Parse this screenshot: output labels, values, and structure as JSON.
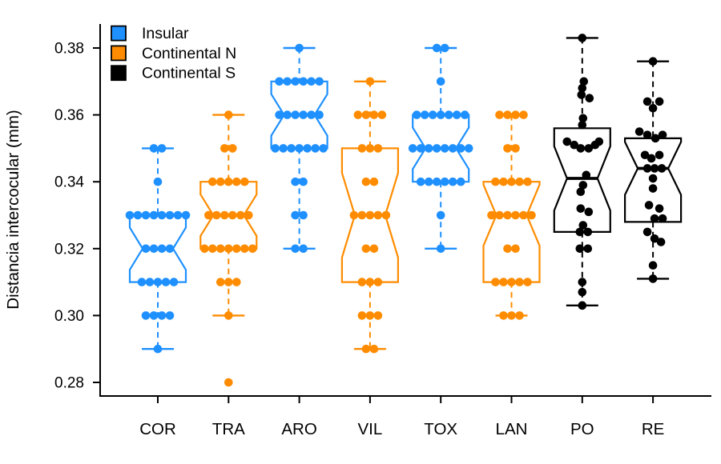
{
  "chart_data": {
    "type": "boxplot",
    "title": "",
    "ylabel": "Distancia intercocular (mm)",
    "xlabel": "",
    "ylim": [
      0.275,
      0.388
    ],
    "grid": false,
    "legend_position": "top-left-inside",
    "legend": [
      {
        "label": "Insular",
        "color": "#1E90FF"
      },
      {
        "label": "Continental N",
        "color": "#FF8C00"
      },
      {
        "label": "Continental S",
        "color": "#000000"
      }
    ],
    "yticks": [
      {
        "value": 0.38,
        "label": "0.38"
      },
      {
        "value": 0.36,
        "label": "0.36"
      },
      {
        "value": 0.34,
        "label": "0.34"
      },
      {
        "value": 0.32,
        "label": "0.32"
      },
      {
        "value": 0.3,
        "label": "0.30"
      },
      {
        "value": 0.28,
        "label": "0.28"
      }
    ],
    "groups": [
      {
        "name": "COR",
        "series": "Insular",
        "color": "#1E90FF",
        "box": {
          "whisker_low": 0.29,
          "q1": 0.31,
          "median": 0.32,
          "q3": 0.33,
          "whisker_high": 0.35
        },
        "point_counts": [
          [
            0.35,
            2
          ],
          [
            0.34,
            1
          ],
          [
            0.33,
            8
          ],
          [
            0.32,
            4
          ],
          [
            0.31,
            5
          ],
          [
            0.3,
            4
          ],
          [
            0.29,
            1
          ]
        ]
      },
      {
        "name": "TRA",
        "series": "Continental N",
        "color": "#FF8C00",
        "box": {
          "whisker_low": 0.3,
          "q1": 0.32,
          "median": 0.33,
          "q3": 0.34,
          "whisker_high": 0.36
        },
        "point_counts": [
          [
            0.36,
            1
          ],
          [
            0.35,
            2
          ],
          [
            0.34,
            5
          ],
          [
            0.33,
            6
          ],
          [
            0.32,
            7
          ],
          [
            0.31,
            3
          ],
          [
            0.3,
            1
          ],
          [
            0.28,
            1
          ]
        ]
      },
      {
        "name": "ARO",
        "series": "Insular",
        "color": "#1E90FF",
        "box": {
          "whisker_low": 0.32,
          "q1": 0.35,
          "median": 0.36,
          "q3": 0.37,
          "whisker_high": 0.38
        },
        "point_counts": [
          [
            0.38,
            1
          ],
          [
            0.37,
            6
          ],
          [
            0.36,
            6
          ],
          [
            0.35,
            7
          ],
          [
            0.34,
            2
          ],
          [
            0.33,
            2
          ],
          [
            0.32,
            2
          ]
        ]
      },
      {
        "name": "VIL",
        "series": "Continental N",
        "color": "#FF8C00",
        "box": {
          "whisker_low": 0.29,
          "q1": 0.31,
          "median": 0.33,
          "q3": 0.35,
          "whisker_high": 0.37
        },
        "point_counts": [
          [
            0.37,
            1
          ],
          [
            0.36,
            4
          ],
          [
            0.35,
            3
          ],
          [
            0.34,
            2
          ],
          [
            0.33,
            5
          ],
          [
            0.32,
            2
          ],
          [
            0.31,
            3
          ],
          [
            0.3,
            3
          ],
          [
            0.29,
            2
          ]
        ]
      },
      {
        "name": "TOX",
        "series": "Insular",
        "color": "#1E90FF",
        "box": {
          "whisker_low": 0.32,
          "q1": 0.34,
          "median": 0.35,
          "q3": 0.36,
          "whisker_high": 0.38
        },
        "point_counts": [
          [
            0.38,
            2
          ],
          [
            0.37,
            1
          ],
          [
            0.36,
            7
          ],
          [
            0.35,
            8
          ],
          [
            0.34,
            6
          ],
          [
            0.33,
            1
          ],
          [
            0.32,
            1
          ]
        ]
      },
      {
        "name": "LAN",
        "series": "Continental N",
        "color": "#FF8C00",
        "box": {
          "whisker_low": 0.3,
          "q1": 0.31,
          "median": 0.33,
          "q3": 0.34,
          "whisker_high": 0.36
        },
        "point_counts": [
          [
            0.36,
            4
          ],
          [
            0.35,
            2
          ],
          [
            0.34,
            5
          ],
          [
            0.33,
            6
          ],
          [
            0.32,
            2
          ],
          [
            0.31,
            5
          ],
          [
            0.3,
            3
          ]
        ]
      },
      {
        "name": "PO",
        "series": "Continental S",
        "color": "#000000",
        "box": {
          "whisker_low": 0.303,
          "q1": 0.325,
          "median": 0.341,
          "q3": 0.356,
          "whisker_high": 0.383
        },
        "points_jitter": [
          [
            0.383,
            0
          ],
          [
            0.37,
            2
          ],
          [
            0.368,
            0
          ],
          [
            0.366,
            -1
          ],
          [
            0.365,
            9
          ],
          [
            0.359,
            1
          ],
          [
            0.357,
            0
          ],
          [
            0.352,
            -19
          ],
          [
            0.351,
            -10
          ],
          [
            0.35,
            -2
          ],
          [
            0.35,
            8
          ],
          [
            0.351,
            16
          ],
          [
            0.352,
            21
          ],
          [
            0.342,
            5
          ],
          [
            0.339,
            1
          ],
          [
            0.337,
            -2
          ],
          [
            0.332,
            -2
          ],
          [
            0.331,
            8
          ],
          [
            0.327,
            1
          ],
          [
            0.325,
            -3
          ],
          [
            0.325,
            7
          ],
          [
            0.32,
            -3
          ],
          [
            0.32,
            7
          ],
          [
            0.31,
            0
          ],
          [
            0.307,
            0
          ],
          [
            0.303,
            0
          ]
        ]
      },
      {
        "name": "RE",
        "series": "Continental S",
        "color": "#000000",
        "box": {
          "whisker_low": 0.311,
          "q1": 0.328,
          "median": 0.344,
          "q3": 0.353,
          "whisker_high": 0.376
        },
        "points_jitter": [
          [
            0.376,
            0
          ],
          [
            0.364,
            -7
          ],
          [
            0.364,
            8
          ],
          [
            0.362,
            0
          ],
          [
            0.355,
            -17
          ],
          [
            0.354,
            -7
          ],
          [
            0.353,
            3
          ],
          [
            0.354,
            12
          ],
          [
            0.348,
            -10
          ],
          [
            0.347,
            -2
          ],
          [
            0.348,
            8
          ],
          [
            0.344,
            -7
          ],
          [
            0.344,
            2
          ],
          [
            0.344,
            11
          ],
          [
            0.341,
            0
          ],
          [
            0.338,
            0
          ],
          [
            0.333,
            -5
          ],
          [
            0.332,
            8
          ],
          [
            0.329,
            2
          ],
          [
            0.329,
            12
          ],
          [
            0.325,
            -7
          ],
          [
            0.323,
            2
          ],
          [
            0.322,
            10
          ],
          [
            0.315,
            0
          ],
          [
            0.311,
            0
          ]
        ]
      }
    ]
  }
}
